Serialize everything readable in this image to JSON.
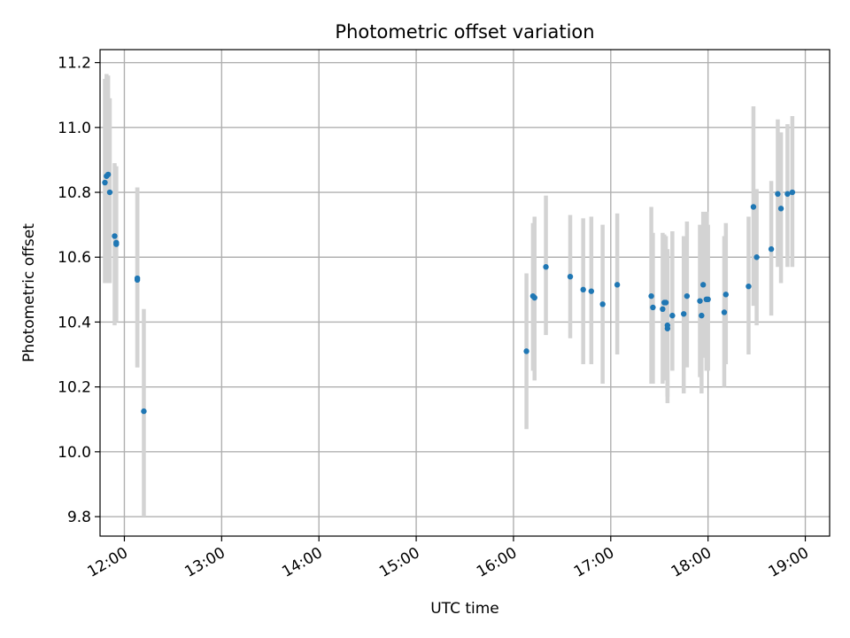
{
  "chart_data": {
    "type": "scatter",
    "title": "Photometric offset variation",
    "xlabel": "UTC time",
    "ylabel": "Photometric offset",
    "x_format": "HH:MM",
    "xlim": [
      "11:45",
      "19:15"
    ],
    "ylim": [
      9.74,
      11.24
    ],
    "x_ticks": [
      "12:00",
      "13:00",
      "14:00",
      "15:00",
      "16:00",
      "17:00",
      "18:00",
      "19:00"
    ],
    "y_ticks": [
      9.8,
      10.0,
      10.2,
      10.4,
      10.6,
      10.8,
      11.0,
      11.2
    ],
    "y_tick_labels": [
      "9.8",
      "10.0",
      "10.2",
      "10.4",
      "10.6",
      "10.8",
      "11.0",
      "11.2"
    ],
    "grid": true,
    "x_tick_rotation": 30,
    "colors": {
      "points": "#1f77b4",
      "errorbars": "#d3d3d3"
    },
    "series": [
      {
        "x": [
          "11:48",
          "11:49",
          "11:50",
          "11:51",
          "11:54",
          "11:55",
          "11:55",
          "12:08",
          "12:08",
          "12:12",
          "16:08",
          "16:12",
          "16:13",
          "16:20",
          "16:35",
          "16:43",
          "16:48",
          "16:55",
          "17:04",
          "17:25",
          "17:26",
          "17:32",
          "17:33",
          "17:34",
          "17:35",
          "17:35",
          "17:38",
          "17:45",
          "17:47",
          "17:55",
          "17:56",
          "17:57",
          "17:59",
          "18:00",
          "18:10",
          "18:11",
          "18:25",
          "18:28",
          "18:30",
          "18:39",
          "18:43",
          "18:45",
          "18:49",
          "18:52"
        ],
        "y": [
          10.83,
          10.85,
          10.855,
          10.8,
          10.665,
          10.645,
          10.64,
          10.53,
          10.535,
          10.125,
          10.31,
          10.48,
          10.475,
          10.57,
          10.54,
          10.5,
          10.495,
          10.455,
          10.515,
          10.48,
          10.445,
          10.44,
          10.46,
          10.46,
          10.38,
          10.39,
          10.42,
          10.425,
          10.48,
          10.465,
          10.42,
          10.515,
          10.47,
          10.47,
          10.43,
          10.485,
          10.51,
          10.755,
          10.6,
          10.625,
          10.795,
          10.75,
          10.795,
          10.8
        ],
        "y_err_low": [
          10.52,
          10.54,
          10.52,
          10.52,
          10.39,
          10.41,
          10.4,
          10.26,
          10.26,
          9.8,
          10.07,
          10.25,
          10.22,
          10.36,
          10.35,
          10.27,
          10.27,
          10.21,
          10.3,
          10.21,
          10.21,
          10.21,
          10.22,
          10.25,
          10.15,
          10.17,
          10.25,
          10.18,
          10.26,
          10.23,
          10.18,
          10.29,
          10.25,
          10.25,
          10.2,
          10.27,
          10.3,
          10.45,
          10.39,
          10.42,
          10.57,
          10.52,
          10.57,
          10.57
        ],
        "y_err_high": [
          11.15,
          11.165,
          11.16,
          11.09,
          10.89,
          10.88,
          10.88,
          10.815,
          10.815,
          10.44,
          10.55,
          10.705,
          10.725,
          10.79,
          10.73,
          10.72,
          10.725,
          10.7,
          10.735,
          10.755,
          10.675,
          10.675,
          10.67,
          10.665,
          10.615,
          10.625,
          10.68,
          10.665,
          10.71,
          10.7,
          10.66,
          10.74,
          10.74,
          10.7,
          10.665,
          10.705,
          10.725,
          11.065,
          10.81,
          10.835,
          11.025,
          10.985,
          11.01,
          11.035
        ]
      }
    ]
  }
}
